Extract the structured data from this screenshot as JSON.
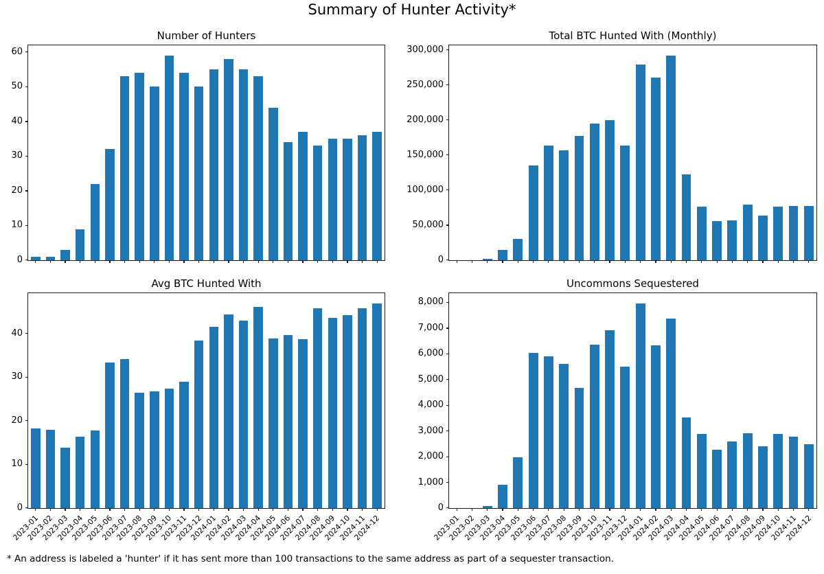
{
  "page": {
    "title": "Summary of Hunter Activity*",
    "footnote": "* An address is labeled a 'hunter' if it has sent more than 100 transactions to the same address as part of a sequester transaction."
  },
  "colors": {
    "bar": "#1f77b4",
    "axis": "#1a1a1a",
    "text": "#000000",
    "background": "#ffffff"
  },
  "chart_data": {
    "layout": "2x2 grid of bar charts, shared monthly x-axis, no gridlines, black box spines",
    "categories": [
      "2023-01",
      "2023-02",
      "2023-03",
      "2023-04",
      "2023-05",
      "2023-06",
      "2023-07",
      "2023-08",
      "2023-09",
      "2023-10",
      "2023-11",
      "2023-12",
      "2024-01",
      "2024-02",
      "2024-03",
      "2024-04",
      "2024-05",
      "2024-06",
      "2024-07",
      "2024-08",
      "2024-09",
      "2024-10",
      "2024-11",
      "2024-12"
    ],
    "charts": [
      {
        "type": "bar",
        "title": "Number of Hunters",
        "xlabel": "",
        "ylabel": "",
        "ylim": [
          0,
          61.95
        ],
        "yticks": [
          0,
          10,
          20,
          30,
          40,
          50,
          60
        ],
        "comma": false,
        "x_tick_labels_visible": false,
        "values": [
          1,
          1,
          3,
          9,
          22,
          32,
          53,
          54,
          50,
          59,
          54,
          50,
          55,
          58,
          55,
          53,
          44,
          34,
          37,
          33,
          35,
          35,
          36,
          37
        ]
      },
      {
        "type": "bar",
        "title": "Total BTC Hunted With (Monthly)",
        "xlabel": "",
        "ylabel": "",
        "ylim": [
          0,
          306500
        ],
        "yticks": [
          0,
          50000,
          100000,
          150000,
          200000,
          250000,
          300000
        ],
        "comma": true,
        "x_tick_labels_visible": false,
        "values": [
          0,
          0,
          1500,
          15000,
          30500,
          135000,
          164000,
          156500,
          177500,
          194500,
          199500,
          164000,
          279000,
          260500,
          292000,
          122500,
          76000,
          55500,
          57000,
          79000,
          63500,
          76500,
          77500,
          77500
        ]
      },
      {
        "type": "bar",
        "title": "Avg BTC Hunted With",
        "xlabel": "",
        "ylabel": "",
        "ylim": [
          0,
          49.2
        ],
        "yticks": [
          0,
          10,
          20,
          30,
          40
        ],
        "comma": false,
        "x_tick_labels_visible": true,
        "values": [
          18.3,
          18.0,
          13.8,
          16.4,
          17.8,
          33.3,
          34.1,
          26.4,
          26.8,
          27.4,
          29.0,
          38.4,
          41.5,
          44.4,
          42.9,
          46.0,
          38.8,
          39.6,
          38.7,
          45.8,
          43.5,
          44.2,
          45.7,
          46.9
        ]
      },
      {
        "type": "bar",
        "title": "Uncommons Sequestered",
        "xlabel": "",
        "ylabel": "",
        "ylim": [
          0,
          8360
        ],
        "yticks": [
          0,
          1000,
          2000,
          3000,
          4000,
          5000,
          6000,
          7000,
          8000
        ],
        "comma": true,
        "x_tick_labels_visible": true,
        "values": [
          0,
          0,
          80,
          900,
          1980,
          6030,
          5900,
          5620,
          4670,
          6370,
          6920,
          5490,
          7960,
          6340,
          7370,
          3520,
          2890,
          2280,
          2580,
          2910,
          2400,
          2890,
          2790,
          2490
        ]
      }
    ]
  }
}
